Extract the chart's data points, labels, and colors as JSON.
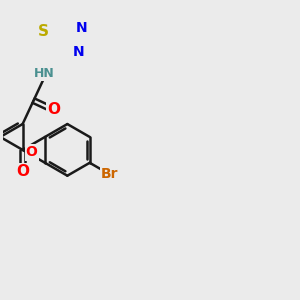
{
  "bg_color": "#ebebeb",
  "bond_color": "#1a1a1a",
  "bond_width": 1.8,
  "dbo": 0.055,
  "atom_colors": {
    "O": "#ff0000",
    "N": "#0000ee",
    "S": "#bbaa00",
    "Br": "#cc6600",
    "H": "#4a9090",
    "C": "#1a1a1a"
  },
  "font_size": 10,
  "fig_size": [
    3.0,
    3.0
  ],
  "dpi": 100
}
